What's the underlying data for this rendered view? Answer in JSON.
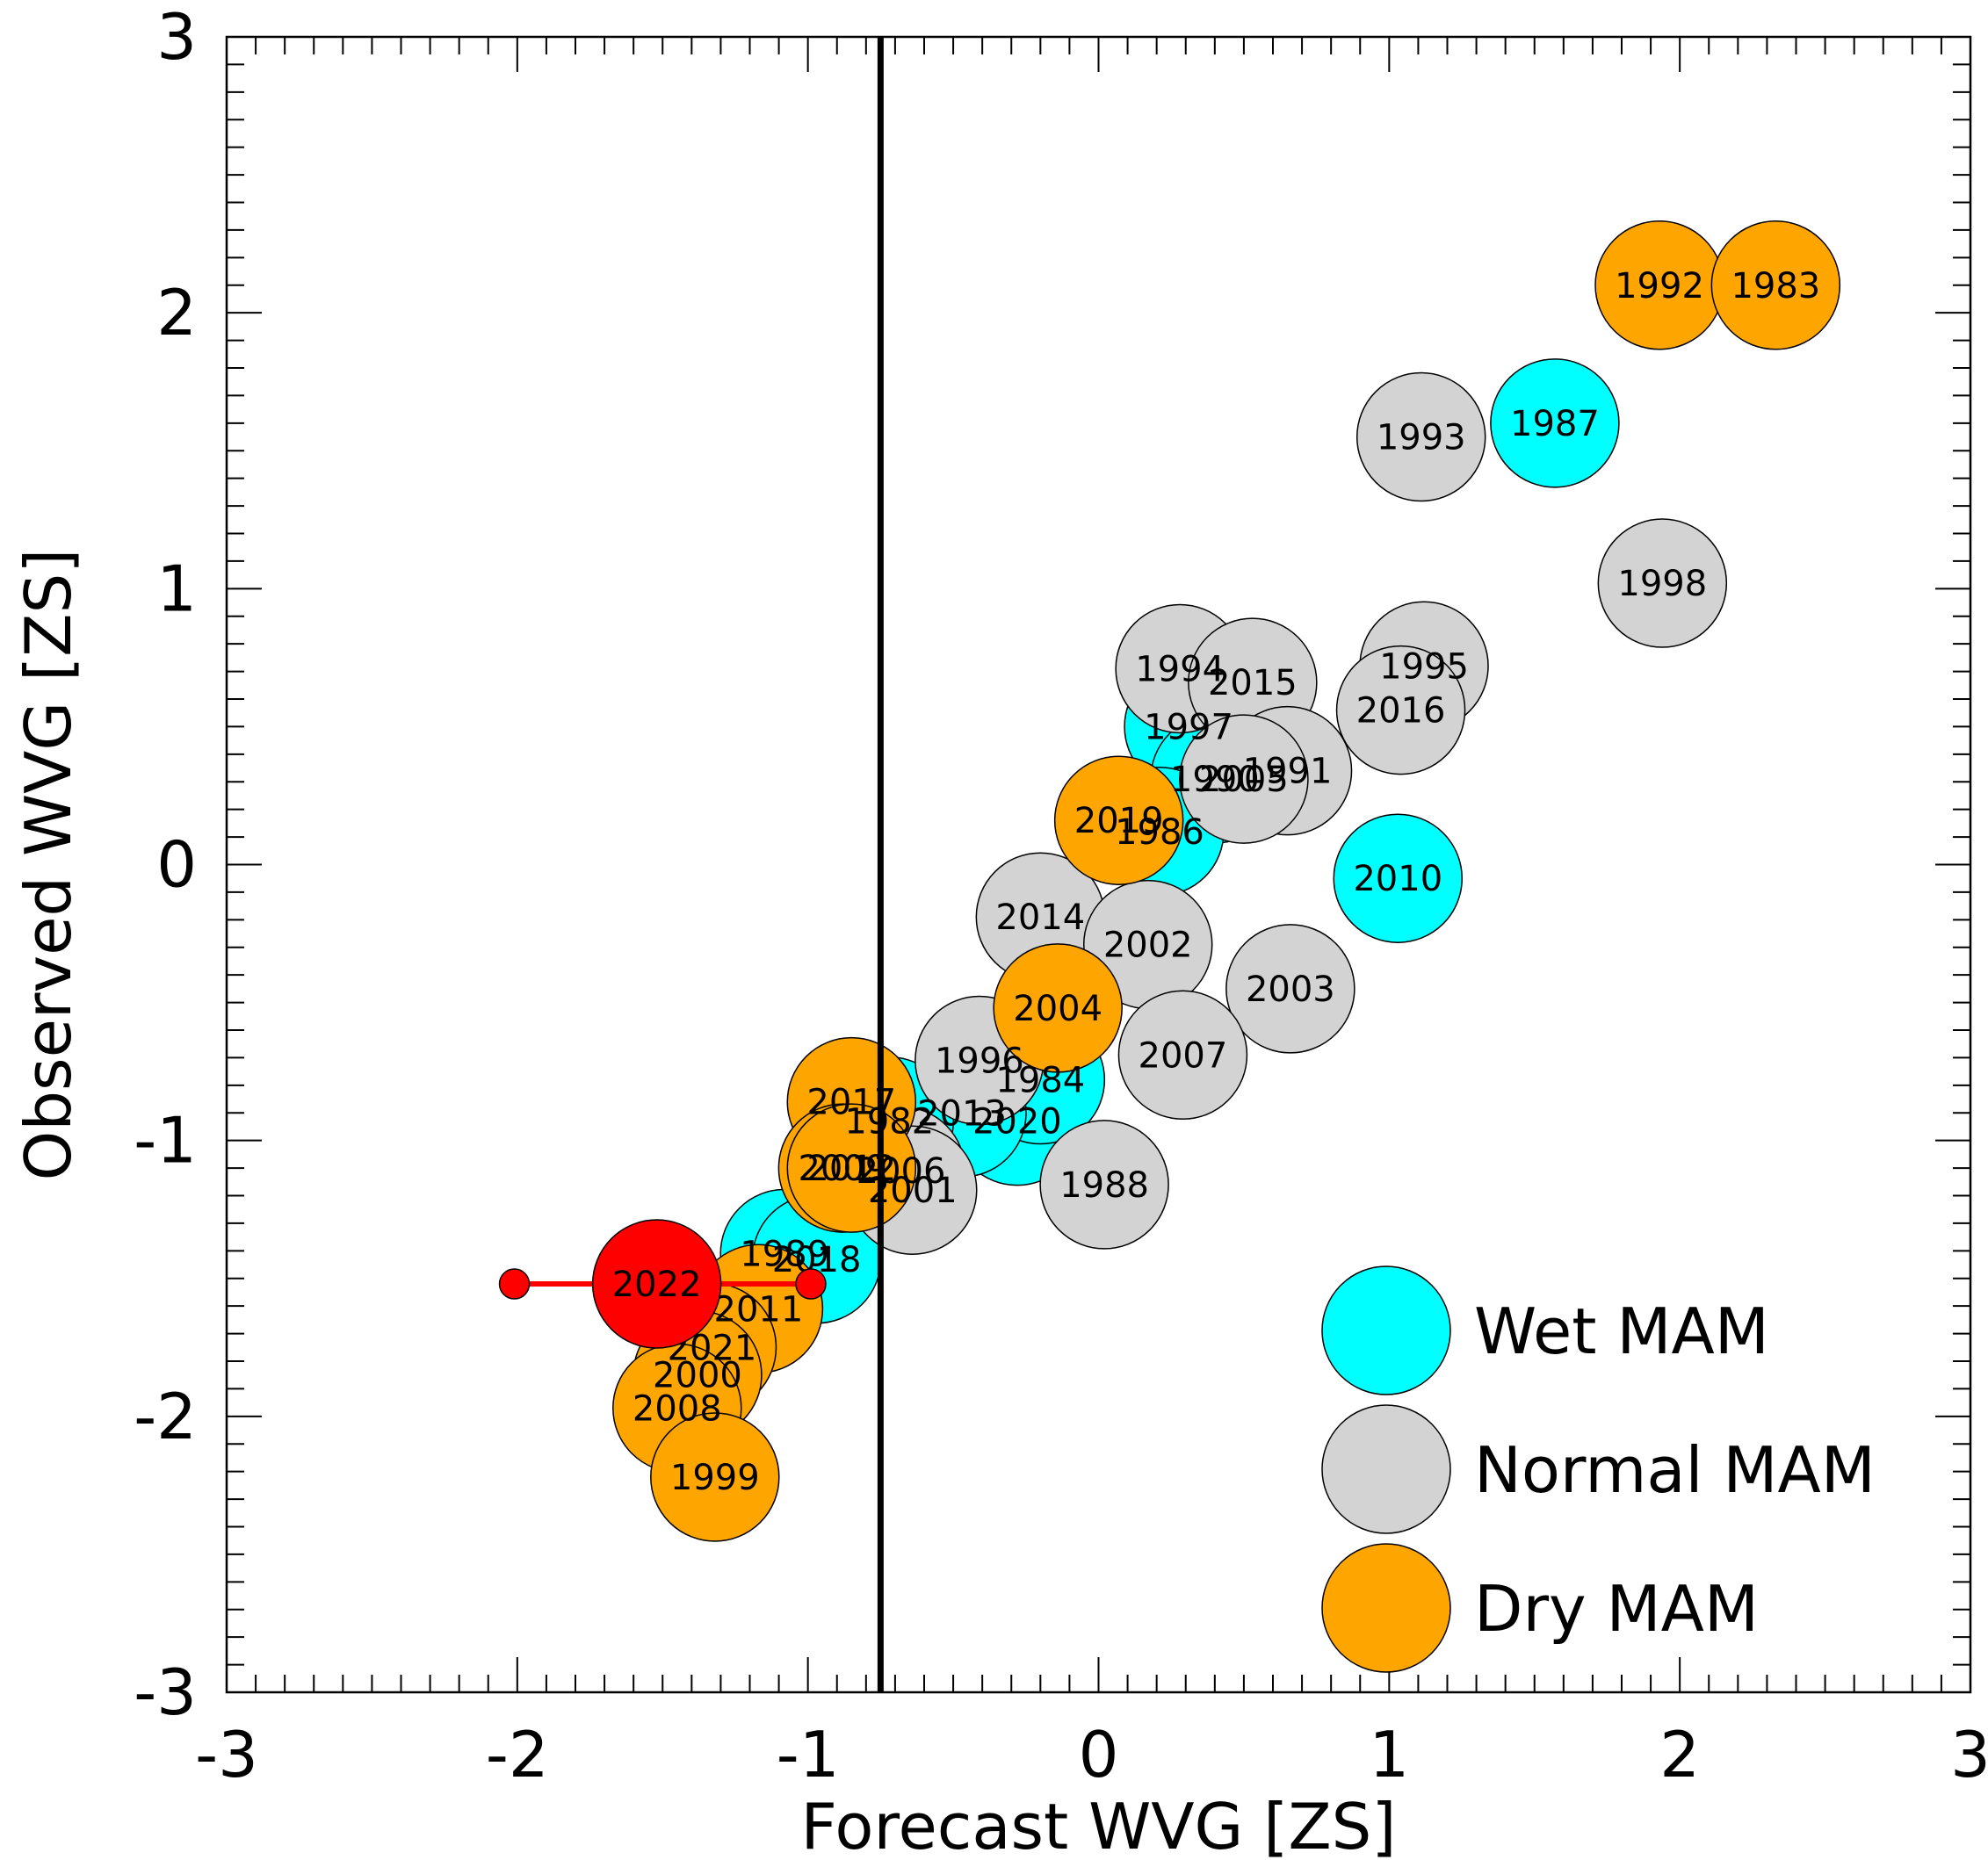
{
  "chart_data": {
    "type": "scatter",
    "xlabel": "Forecast WVG [ZS]",
    "ylabel": "Observed WVG [ZS]",
    "xlim": [
      -3,
      3
    ],
    "ylim": [
      -3,
      3
    ],
    "x_ticks": [
      "-3",
      "-2",
      "-1",
      "0",
      "1",
      "2",
      "3"
    ],
    "y_ticks": [
      "-3",
      "-2",
      "-1",
      "0",
      "1",
      "2",
      "3"
    ],
    "grid": false,
    "vertical_line_x": -0.75,
    "legend_position": "bottom-right",
    "colors": {
      "Wet MAM": "#00ffff",
      "Normal MAM": "#d3d3d3",
      "Dry MAM": "#ffa500",
      "highlight": "#ff0000"
    },
    "series": [
      {
        "name": "Wet MAM",
        "points": [
          {
            "label": "1987",
            "x": 1.57,
            "y": 1.6
          },
          {
            "label": "2010",
            "x": 1.03,
            "y": -0.05
          },
          {
            "label": "1997",
            "x": 0.31,
            "y": 0.5
          },
          {
            "label": "1990",
            "x": 0.4,
            "y": 0.31
          },
          {
            "label": "1986",
            "x": 0.21,
            "y": 0.12
          },
          {
            "label": "2020",
            "x": -0.28,
            "y": -0.93
          },
          {
            "label": "1984",
            "x": -0.2,
            "y": -0.78
          },
          {
            "label": "2013",
            "x": -0.47,
            "y": -0.9
          },
          {
            "label": "1982",
            "x": -0.72,
            "y": -0.93
          },
          {
            "label": "1989",
            "x": -1.08,
            "y": -1.41
          },
          {
            "label": "2018",
            "x": -0.97,
            "y": -1.43
          }
        ]
      },
      {
        "name": "Normal MAM",
        "points": [
          {
            "label": "1993",
            "x": 1.11,
            "y": 1.55
          },
          {
            "label": "1998",
            "x": 1.94,
            "y": 1.02
          },
          {
            "label": "1995",
            "x": 1.12,
            "y": 0.72
          },
          {
            "label": "2016",
            "x": 1.04,
            "y": 0.56
          },
          {
            "label": "1994",
            "x": 0.28,
            "y": 0.71
          },
          {
            "label": "2015",
            "x": 0.53,
            "y": 0.66
          },
          {
            "label": "1991",
            "x": 0.65,
            "y": 0.34
          },
          {
            "label": "2005",
            "x": 0.5,
            "y": 0.31
          },
          {
            "label": "2014",
            "x": -0.2,
            "y": -0.19
          },
          {
            "label": "2002",
            "x": 0.17,
            "y": -0.29
          },
          {
            "label": "2003",
            "x": 0.66,
            "y": -0.45
          },
          {
            "label": "2007",
            "x": 0.29,
            "y": -0.69
          },
          {
            "label": "1996",
            "x": -0.41,
            "y": -0.71
          },
          {
            "label": "1988",
            "x": 0.02,
            "y": -1.16
          },
          {
            "label": "2006",
            "x": -0.68,
            "y": -1.11
          },
          {
            "label": "2001",
            "x": -0.64,
            "y": -1.18
          }
        ]
      },
      {
        "name": "Dry MAM",
        "points": [
          {
            "label": "1992",
            "x": 1.93,
            "y": 2.1
          },
          {
            "label": "1983",
            "x": 2.33,
            "y": 2.1
          },
          {
            "label": "2019",
            "x": 0.07,
            "y": 0.16
          },
          {
            "label": "2004",
            "x": -0.14,
            "y": -0.52
          },
          {
            "label": "2017",
            "x": -0.85,
            "y": -0.86
          },
          {
            "label": "2009",
            "x": -0.88,
            "y": -1.1
          },
          {
            "label": "2012",
            "x": -0.85,
            "y": -1.1
          },
          {
            "label": "2011",
            "x": -1.17,
            "y": -1.61
          },
          {
            "label": "2021",
            "x": -1.33,
            "y": -1.75
          },
          {
            "label": "2000",
            "x": -1.38,
            "y": -1.85
          },
          {
            "label": "2008",
            "x": -1.45,
            "y": -1.97
          },
          {
            "label": "1999",
            "x": -1.32,
            "y": -2.22
          }
        ]
      }
    ],
    "highlight": {
      "label": "2022",
      "x": -1.52,
      "y": -1.52,
      "range_x": [
        -2.01,
        -0.99
      ]
    }
  }
}
